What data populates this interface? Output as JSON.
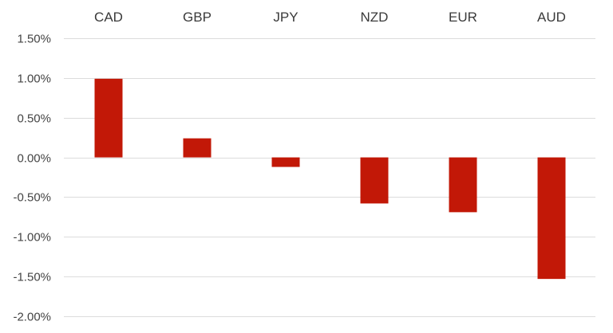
{
  "chart_data": {
    "type": "bar",
    "categories": [
      "CAD",
      "GBP",
      "JPY",
      "NZD",
      "EUR",
      "AUD"
    ],
    "values": [
      0.99,
      0.24,
      -0.12,
      -0.58,
      -0.69,
      -1.53
    ],
    "ylim": [
      -2.0,
      1.5
    ],
    "yticks": [
      "1.50%",
      "1.00%",
      "0.50%",
      "0.00%",
      "-0.50%",
      "-1.00%",
      "-1.50%",
      "-2.00%"
    ],
    "ytick_values": [
      1.5,
      1.0,
      0.5,
      0.0,
      -0.5,
      -1.0,
      -1.5,
      -2.0
    ],
    "grid": true,
    "category_axis_position": "top",
    "bar_color": "#c21807",
    "grid_color": "#dcdcdc"
  }
}
